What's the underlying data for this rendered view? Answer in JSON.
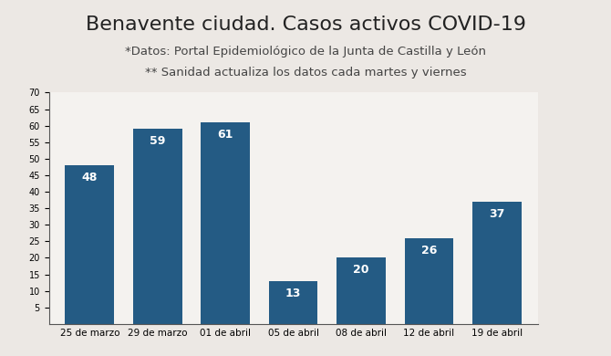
{
  "chart_data": {
    "type": "bar",
    "title": "Benavente ciudad. Casos activos COVID-19",
    "subtitle": "*Datos: Portal Epidemiológico de la Junta de Castilla y León",
    "annotations": [
      "** Sanidad actualiza los datos cada martes y viernes"
    ],
    "categories": [
      "25 de marzo",
      "29 de marzo",
      "01 de abril",
      "05 de abril",
      "08 de abril",
      "12 de abril",
      "19 de abril"
    ],
    "values": [
      48,
      59,
      61,
      13,
      20,
      26,
      37
    ],
    "color": "#245b84",
    "ylim": [
      0,
      70
    ],
    "yticks": [
      5,
      10,
      15,
      20,
      25,
      30,
      35,
      40,
      45,
      50,
      55,
      60,
      65,
      70
    ],
    "grid": false,
    "data_labels": true
  }
}
